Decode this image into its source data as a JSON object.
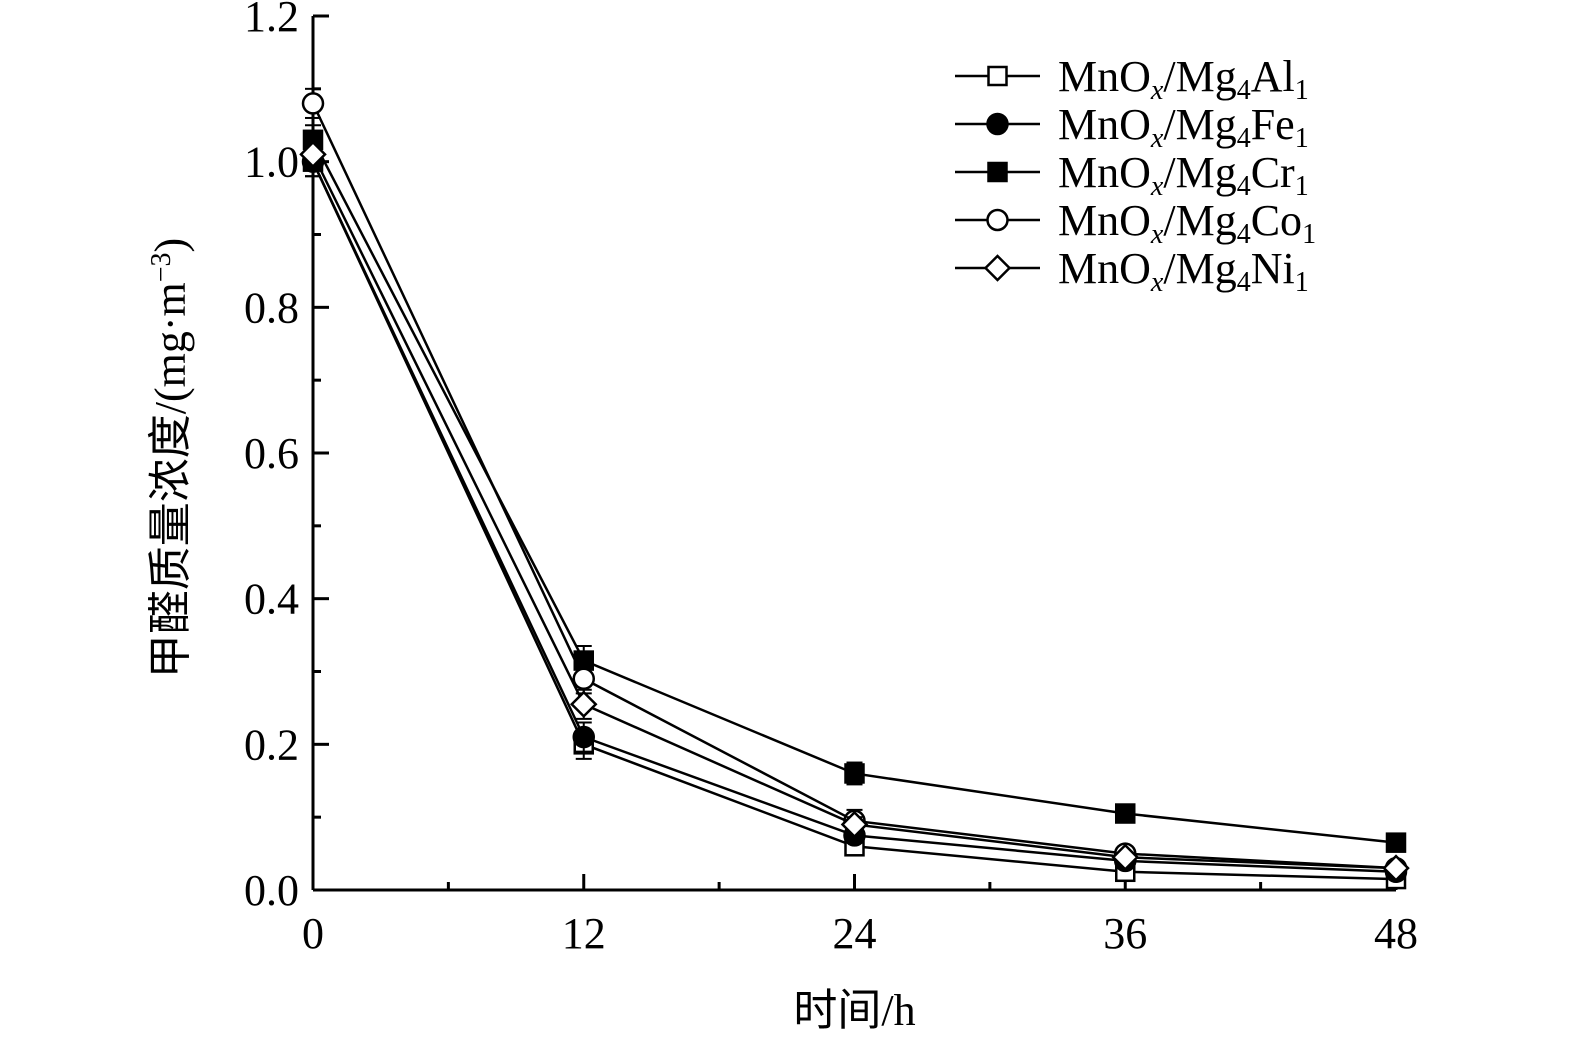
{
  "chart_data": {
    "type": "line",
    "xlabel": "时间/h",
    "ylabel_main": "甲醛质量浓度/(mg·m",
    "ylabel_exp": "−3",
    "ylabel_close": ")",
    "x": [
      0,
      12,
      24,
      36,
      48
    ],
    "xticks": [
      "0",
      "12",
      "24",
      "36",
      "48"
    ],
    "yticks": [
      "0.0",
      "0.2",
      "0.4",
      "0.6",
      "0.8",
      "1.0",
      "1.2"
    ],
    "xlim": [
      0,
      48
    ],
    "ylim": [
      0,
      1.2
    ],
    "grid": false,
    "legend_position": "top-right",
    "series": [
      {
        "name": "MnOx/Mg4Al1",
        "legend": {
          "base": "MnO",
          "sub1": "x",
          "mid": "/Mg",
          "sub2": "4",
          "el": "Al",
          "sub3": "1"
        },
        "marker": "square-open",
        "values": [
          1.0,
          0.2,
          0.06,
          0.025,
          0.015
        ],
        "errors": [
          0.02,
          0.02,
          0.01,
          0.005,
          0.005
        ]
      },
      {
        "name": "MnOx/Mg4Fe1",
        "legend": {
          "base": "MnO",
          "sub1": "x",
          "mid": "/Mg",
          "sub2": "4",
          "el": "Fe",
          "sub3": "1"
        },
        "marker": "circle-filled",
        "values": [
          1.0,
          0.21,
          0.075,
          0.04,
          0.025
        ],
        "errors": [
          0.02,
          0.02,
          0.01,
          0.005,
          0.005
        ]
      },
      {
        "name": "MnOx/Mg4Cr1",
        "legend": {
          "base": "MnO",
          "sub1": "x",
          "mid": "/Mg",
          "sub2": "4",
          "el": "Cr",
          "sub3": "1"
        },
        "marker": "square-filled",
        "values": [
          1.03,
          0.315,
          0.16,
          0.105,
          0.065
        ],
        "errors": [
          0.02,
          0.02,
          0.015,
          0.005,
          0.005
        ]
      },
      {
        "name": "MnOx/Mg4Co1",
        "legend": {
          "base": "MnO",
          "sub1": "x",
          "mid": "/Mg",
          "sub2": "4",
          "el": "Co",
          "sub3": "1"
        },
        "marker": "circle-open",
        "values": [
          1.08,
          0.29,
          0.095,
          0.05,
          0.03
        ],
        "errors": [
          0.02,
          0.02,
          0.015,
          0.005,
          0.005
        ]
      },
      {
        "name": "MnOx/Mg4Ni1",
        "legend": {
          "base": "MnO",
          "sub1": "x",
          "mid": "/Mg",
          "sub2": "4",
          "el": "Ni",
          "sub3": "1"
        },
        "marker": "diamond-open",
        "values": [
          1.01,
          0.255,
          0.09,
          0.045,
          0.03
        ],
        "errors": [
          0.02,
          0.02,
          0.01,
          0.005,
          0.005
        ]
      }
    ]
  }
}
